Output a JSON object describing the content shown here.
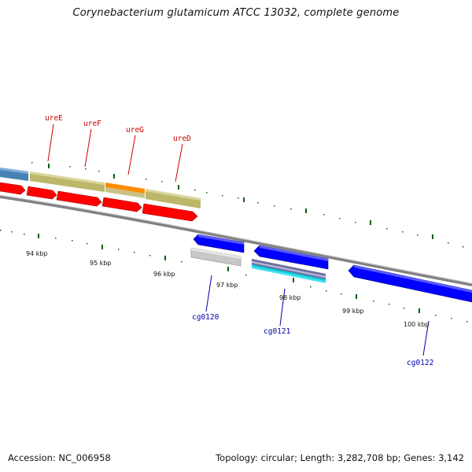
{
  "title": "Corynebacterium glutamicum ATCC 13032, complete genome",
  "footer": {
    "accession": "Accession: NC_006958",
    "summary": "Topology: circular; Length: 3,282,708 bp; Genes: 3,142"
  },
  "colors": {
    "forward_gene": "#ff0000",
    "reverse_gene": "#0000ff",
    "cds_olive": "#bdb76b",
    "cds_steelblue": "#4682b4",
    "cds_orange": "#ff8c00",
    "pseudo_gray": "#c0c0c0",
    "genome_line": "#808080",
    "tick_marks": "#006400",
    "forward_labels": "#cc0000",
    "reverse_labels": "#0000aa"
  },
  "upper_labels": [
    "ureE",
    "ureF",
    "ureG",
    "ureD"
  ],
  "lower_labels": [
    "cg0120",
    "cg0121",
    "cg0122"
  ],
  "kbp_labels": [
    "94 kbp",
    "95 kbp",
    "96 kbp",
    "97 kbp",
    "98 kbp",
    "99 kbp",
    "100 kbp"
  ]
}
